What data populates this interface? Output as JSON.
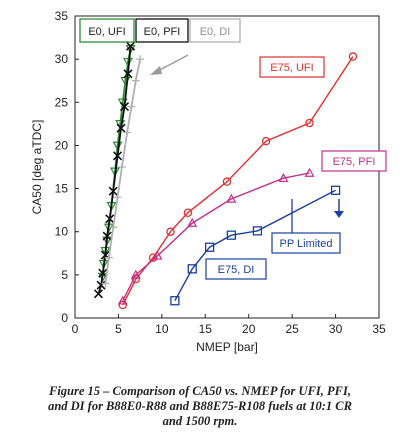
{
  "chart_data": {
    "type": "line",
    "xlabel": "NMEP [bar]",
    "ylabel": "CA50 [deg aTDC]",
    "xlim": [
      0,
      35
    ],
    "ylim": [
      0,
      35
    ],
    "x_ticks": [
      0,
      5,
      10,
      15,
      20,
      25,
      30,
      35
    ],
    "y_ticks": [
      0,
      5,
      10,
      15,
      20,
      25,
      30,
      35
    ],
    "grid": false,
    "legend": "top-left",
    "series": [
      {
        "name": "E0, UFI",
        "color": "#2e8b3a",
        "marker": "triangle-down",
        "x": [
          3.2,
          3.3,
          3.5,
          3.7,
          3.9,
          4.2,
          4.6,
          4.9,
          5.2,
          5.5,
          5.8,
          6.1,
          6.4
        ],
        "y": [
          4.8,
          6.3,
          7.8,
          9.0,
          10.5,
          13.0,
          17.0,
          20.0,
          22.5,
          25.0,
          27.5,
          29.7,
          31.2
        ]
      },
      {
        "name": "E0, PFI",
        "color": "#111111",
        "marker": "x",
        "x": [
          2.7,
          3.0,
          3.2,
          3.5,
          3.7,
          4.0,
          4.4,
          4.9,
          5.3,
          5.7,
          6.1,
          6.4
        ],
        "y": [
          2.8,
          3.8,
          5.2,
          7.3,
          9.5,
          11.5,
          14.7,
          18.8,
          22.0,
          24.5,
          28.3,
          31.5
        ]
      },
      {
        "name": "E0, DI",
        "color": "#b0b0b0",
        "marker": "plus",
        "x": [
          3.5,
          3.9,
          4.4,
          4.9,
          5.4,
          6.0,
          6.5,
          7.0,
          7.5
        ],
        "y": [
          4.0,
          7.0,
          10.5,
          14.0,
          17.5,
          21.5,
          24.5,
          27.5,
          30.0
        ]
      },
      {
        "name": "E75, UFI",
        "color": "#e03030",
        "marker": "circle",
        "x": [
          5.5,
          7.0,
          9.0,
          11.0,
          13.0,
          17.5,
          22.0,
          27.0,
          32.0
        ],
        "y": [
          1.5,
          4.5,
          7.0,
          10.0,
          12.2,
          15.8,
          20.5,
          22.6,
          30.3
        ]
      },
      {
        "name": "E75, PFI",
        "color": "#c0308a",
        "marker": "triangle-up",
        "x": [
          5.5,
          7.0,
          9.5,
          13.5,
          18.0,
          24.0,
          27.0
        ],
        "y": [
          2.0,
          5.0,
          7.2,
          11.0,
          13.8,
          16.2,
          16.8
        ]
      },
      {
        "name": "E75, DI",
        "color": "#1c3fa0",
        "marker": "square",
        "x": [
          11.5,
          13.5,
          15.5,
          18.0,
          21.0,
          30.0
        ],
        "y": [
          2.0,
          5.7,
          8.2,
          9.6,
          10.1,
          14.8
        ]
      }
    ],
    "legend_labels": [
      "E0, UFI",
      "E0, PFI",
      "E0, DI"
    ],
    "annotations": [
      {
        "text": "E75, UFI",
        "color": "#e03030"
      },
      {
        "text": "E75, PFI",
        "color": "#c0308a"
      },
      {
        "text": "E75, DI",
        "color": "#1c3fa0"
      },
      {
        "text": "PP Limited",
        "color": "#1c3fa0"
      }
    ]
  },
  "caption": {
    "line1": "Figure 15 – Comparison of CA50 vs. NMEP for UFI, PFI,",
    "line2": "and DI for B88E0-R88 and B88E75-R108 fuels at 10:1 CR",
    "line3": "and 1500 rpm."
  }
}
